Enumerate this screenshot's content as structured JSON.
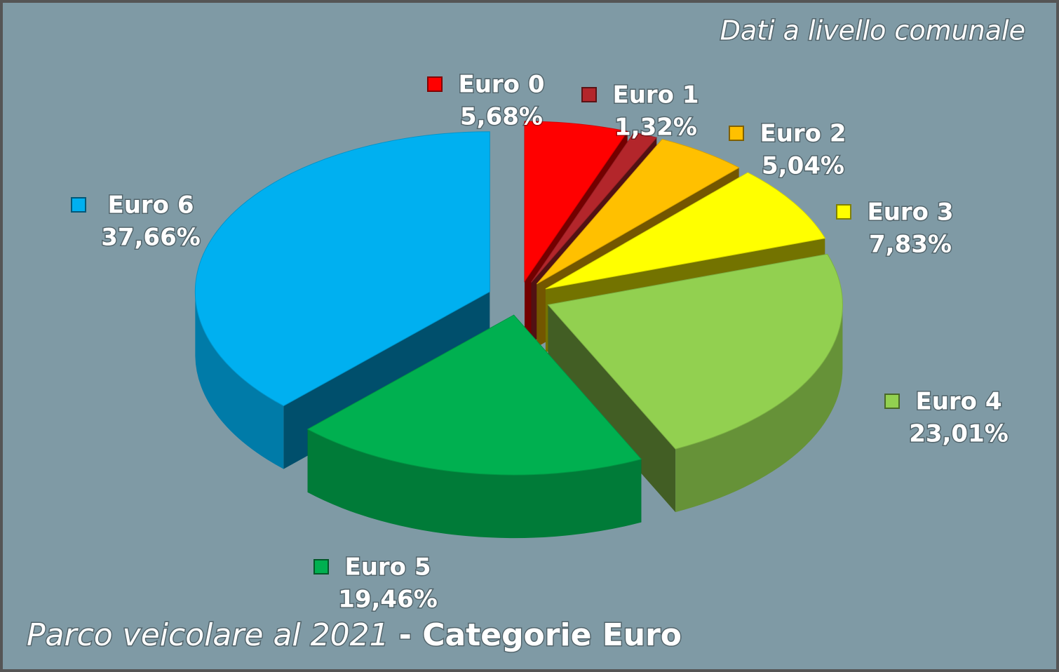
{
  "chart_data": {
    "type": "pie",
    "title_parts": [
      "Parco veicolare al 2021",
      "- Categorie Euro"
    ],
    "annotation": "Dati a livello comunale",
    "categories": [
      "Euro 0",
      "Euro 1",
      "Euro 2",
      "Euro 3",
      "Euro 4",
      "Euro 5",
      "Euro 6"
    ],
    "values": [
      5.68,
      1.32,
      5.04,
      7.83,
      23.01,
      19.46,
      37.66
    ],
    "value_labels": [
      "5,68%",
      "1,32%",
      "5,04%",
      "7,83%",
      "23,01%",
      "19,46%",
      "37,66%"
    ],
    "colors": [
      "#ff0000",
      "#b3262b",
      "#ffc000",
      "#ffff00",
      "#92d050",
      "#00b050",
      "#00b0f0"
    ]
  }
}
